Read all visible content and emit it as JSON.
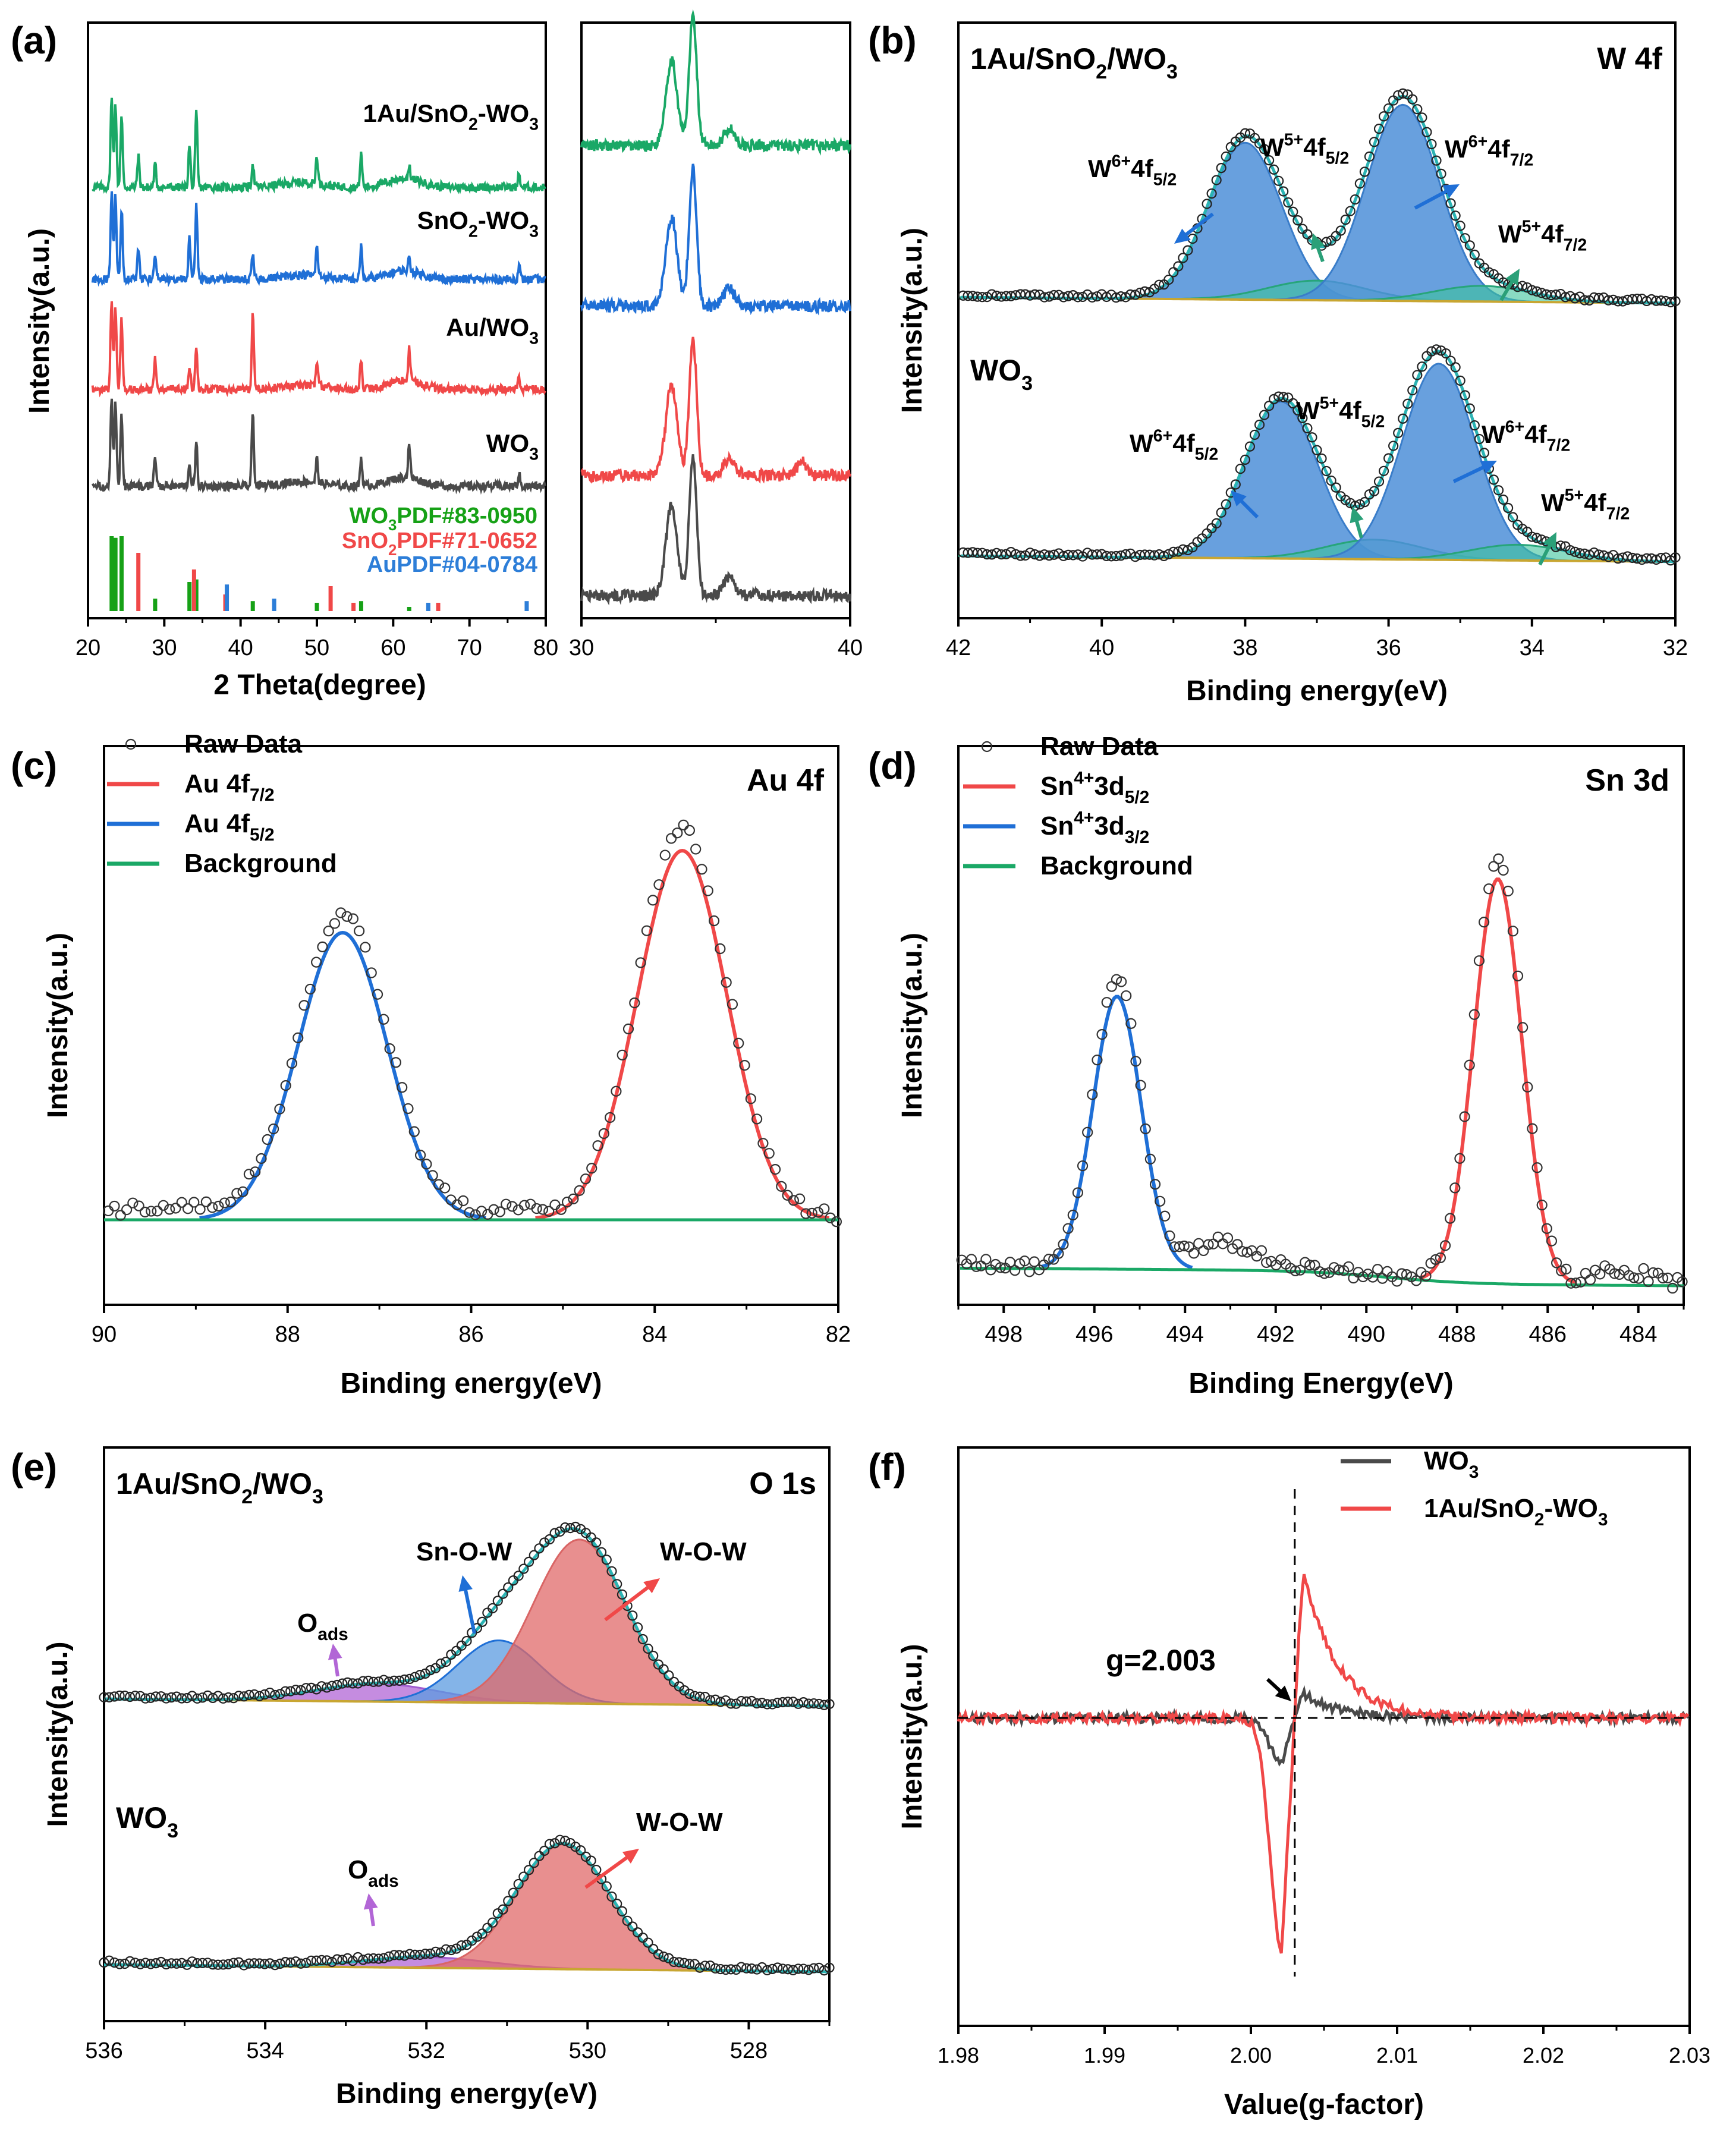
{
  "figure": {
    "panel_a": {
      "letter": "(a)",
      "xlabel": "2 Theta(degree)",
      "ylabel": "Intensity(a.u.)",
      "xticks": [
        "20",
        "30",
        "40",
        "50",
        "60",
        "70",
        "80"
      ],
      "zoom_xticks": [
        "30",
        "40"
      ],
      "series_labels": [
        {
          "base": "1Au/SnO",
          "sub": "2",
          "rest": "-WO",
          "sub2": "3"
        },
        {
          "base": "SnO",
          "sub": "2",
          "rest": "-WO",
          "sub2": "3"
        },
        {
          "base": "Au/WO",
          "sub": "3",
          "rest": "",
          "sub2": ""
        },
        {
          "base": "WO",
          "sub": "3",
          "rest": "",
          "sub2": ""
        }
      ],
      "pdf_labels": [
        {
          "base": "WO",
          "sub": "3",
          "rest": "PDF#83-0950"
        },
        {
          "base": "SnO",
          "sub": "2",
          "rest": "PDF#71-0652"
        },
        {
          "base": "Au",
          "sub": "",
          "rest": "PDF#04-0784"
        }
      ]
    },
    "panel_b": {
      "letter": "(b)",
      "title": "W 4f",
      "sample_top": {
        "base": "1Au/SnO",
        "sub": "2",
        "rest": "/WO",
        "sub2": "3"
      },
      "sample_bottom": {
        "base": "WO",
        "sub": "3"
      },
      "xlabel": "Binding energy(eV)",
      "ylabel": "Intensity(a.u.)",
      "xticks": [
        "42",
        "40",
        "38",
        "36",
        "34",
        "32"
      ],
      "peaks": [
        {
          "base": "W",
          "sup": "6+",
          "mid": "4f",
          "sub": "5/2"
        },
        {
          "base": "W",
          "sup": "5+",
          "mid": "4f",
          "sub": "5/2"
        },
        {
          "base": "W",
          "sup": "6+",
          "mid": "4f",
          "sub": "7/2"
        },
        {
          "base": "W",
          "sup": "5+",
          "mid": "4f",
          "sub": "7/2"
        }
      ]
    },
    "panel_c": {
      "letter": "(c)",
      "title": "Au 4f",
      "xlabel": "Binding energy(eV)",
      "ylabel": "Intensity(a.u.)",
      "xticks": [
        "90",
        "88",
        "86",
        "84",
        "82"
      ],
      "legend": [
        {
          "base": "Raw Data",
          "sub": ""
        },
        {
          "base": "Au 4f",
          "sub": "7/2"
        },
        {
          "base": "Au 4f",
          "sub": "5/2"
        },
        {
          "base": "Background",
          "sub": ""
        }
      ]
    },
    "panel_d": {
      "letter": "(d)",
      "title": "Sn 3d",
      "xlabel": "Binding Energy(eV)",
      "ylabel": "Intensity(a.u.)",
      "xticks": [
        "498",
        "496",
        "494",
        "492",
        "490",
        "488",
        "486",
        "484"
      ],
      "legend": [
        {
          "base": "Raw Data",
          "sup": "",
          "mid": "",
          "sub": ""
        },
        {
          "base": "Sn",
          "sup": "4+",
          "mid": "3d",
          "sub": "5/2"
        },
        {
          "base": "Sn",
          "sup": "4+",
          "mid": "3d",
          "sub": "3/2"
        },
        {
          "base": "Background",
          "sup": "",
          "mid": "",
          "sub": ""
        }
      ]
    },
    "panel_e": {
      "letter": "(e)",
      "title": "O 1s",
      "sample_top": {
        "base": "1Au/SnO",
        "sub": "2",
        "rest": "/WO",
        "sub2": "3"
      },
      "sample_bottom": {
        "base": "WO",
        "sub": "3"
      },
      "xlabel": "Binding energy(eV)",
      "ylabel": "Intensity(a.u.)",
      "xticks": [
        "536",
        "534",
        "532",
        "530",
        "528"
      ],
      "labels": {
        "snow": "Sn-O-W",
        "wow": "W-O-W",
        "oads_base": "O",
        "oads_sub": "ads"
      }
    },
    "panel_f": {
      "letter": "(f)",
      "xlabel": "Value(g-factor)",
      "ylabel": "Intensity(a.u.)",
      "xticks": [
        "1.98",
        "1.99",
        "2.00",
        "2.01",
        "2.02",
        "2.03"
      ],
      "annotation": "g=2.003",
      "legend": [
        {
          "base": "WO",
          "sub": "3",
          "rest": "",
          "sub2": ""
        },
        {
          "base": "1Au/SnO",
          "sub": "2",
          "rest": "-WO",
          "sub2": "3"
        }
      ]
    },
    "colors": {
      "green": "#1aa866",
      "blue": "#1f6fd6",
      "red": "#f04848",
      "dark": "#4a4a4a",
      "xps_fill": "#4e8fd8",
      "o_fill": "#e06a6a",
      "env": "#2bb3b3",
      "bg_line": "#c8a632",
      "purple": "#b266d6",
      "pdf_green": "#16a116",
      "pdf_red": "#f04848",
      "pdf_blue": "#2d7ed8"
    }
  },
  "chart_data": [
    {
      "id": "a",
      "type": "line",
      "title": "",
      "xlabel": "2 Theta(degree)",
      "ylabel": "Intensity(a.u.)",
      "xlim": [
        20,
        80
      ],
      "series": [
        {
          "name": "1Au/SnO2-WO3",
          "peaks_2theta": [
            23.1,
            23.6,
            24.4,
            26.6,
            28.8,
            33.3,
            34.2,
            41.6,
            50.0,
            55.8,
            62.1,
            76.5
          ]
        },
        {
          "name": "SnO2-WO3",
          "peaks_2theta": [
            23.1,
            23.6,
            24.4,
            26.6,
            28.8,
            33.3,
            34.2,
            41.6,
            50.0,
            55.8,
            62.1,
            76.5
          ]
        },
        {
          "name": "Au/WO3",
          "peaks_2theta": [
            23.1,
            23.6,
            24.4,
            28.8,
            33.3,
            34.2,
            41.6,
            50.0,
            55.8,
            62.1,
            76.5
          ]
        },
        {
          "name": "WO3",
          "peaks_2theta": [
            23.1,
            23.6,
            24.4,
            28.8,
            33.3,
            34.2,
            41.6,
            50.0,
            55.8,
            62.1,
            76.5
          ]
        }
      ],
      "reference_patterns": [
        {
          "name": "WO3 PDF#83-0950",
          "lines": [
            [
              23.1,
              0.9
            ],
            [
              23.6,
              0.88
            ],
            [
              24.4,
              0.9
            ],
            [
              28.8,
              0.15
            ],
            [
              33.3,
              0.35
            ],
            [
              34.2,
              0.38
            ],
            [
              41.6,
              0.12
            ],
            [
              50.0,
              0.1
            ],
            [
              55.8,
              0.12
            ],
            [
              62.1,
              0.05
            ]
          ]
        },
        {
          "name": "SnO2 PDF#71-0652",
          "lines": [
            [
              26.6,
              0.7
            ],
            [
              33.9,
              0.5
            ],
            [
              38.0,
              0.2
            ],
            [
              51.8,
              0.3
            ],
            [
              54.8,
              0.1
            ],
            [
              65.9,
              0.1
            ]
          ]
        },
        {
          "name": "Au PDF#04-0784",
          "lines": [
            [
              38.2,
              0.32
            ],
            [
              44.4,
              0.15
            ],
            [
              64.6,
              0.1
            ],
            [
              77.5,
              0.12
            ]
          ]
        }
      ],
      "zoom_window": {
        "xlim": [
          30,
          40
        ],
        "note": "inset of the same four patterns"
      }
    },
    {
      "id": "b",
      "type": "line",
      "title": "W 4f",
      "xlabel": "Binding energy(eV)",
      "ylabel": "Intensity(a.u.)",
      "xlim": [
        42,
        32
      ],
      "series": [
        {
          "name": "1Au/SnO2/WO3",
          "components": [
            {
              "name": "W6+ 4f5/2",
              "center": 38.0,
              "fwhm": 1.2,
              "height": 0.8
            },
            {
              "name": "W5+ 4f5/2",
              "center": 37.0,
              "fwhm": 1.6,
              "height": 0.1
            },
            {
              "name": "W6+ 4f7/2",
              "center": 35.8,
              "fwhm": 1.2,
              "height": 1.0
            },
            {
              "name": "W5+ 4f7/2",
              "center": 34.7,
              "fwhm": 1.6,
              "height": 0.08
            }
          ]
        },
        {
          "name": "WO3",
          "components": [
            {
              "name": "W6+ 4f5/2",
              "center": 37.5,
              "fwhm": 1.2,
              "height": 0.8
            },
            {
              "name": "W5+ 4f5/2",
              "center": 36.2,
              "fwhm": 1.6,
              "height": 0.1
            },
            {
              "name": "W6+ 4f7/2",
              "center": 35.3,
              "fwhm": 1.2,
              "height": 1.0
            },
            {
              "name": "W5+ 4f7/2",
              "center": 34.2,
              "fwhm": 1.6,
              "height": 0.08
            }
          ]
        }
      ]
    },
    {
      "id": "c",
      "type": "line",
      "title": "Au 4f",
      "xlabel": "Binding energy(eV)",
      "ylabel": "Intensity(a.u.)",
      "xlim": [
        90,
        82
      ],
      "series": [
        {
          "name": "Au 4f7/2",
          "center": 83.7,
          "fwhm": 1.15,
          "height": 0.9
        },
        {
          "name": "Au 4f5/2",
          "center": 87.4,
          "fwhm": 1.15,
          "height": 0.7
        },
        {
          "name": "Background",
          "level": 0.0
        }
      ]
    },
    {
      "id": "d",
      "type": "line",
      "title": "Sn 3d",
      "xlabel": "Binding Energy(eV)",
      "ylabel": "Intensity(a.u.)",
      "xlim": [
        499,
        483
      ],
      "series": [
        {
          "name": "Sn4+ 3d5/2",
          "center": 487.1,
          "fwhm": 1.25,
          "height": 0.92
        },
        {
          "name": "Sn4+ 3d3/2",
          "center": 495.5,
          "fwhm": 1.25,
          "height": 0.62
        },
        {
          "name": "Background",
          "start": 0.03,
          "end": 0.0
        }
      ]
    },
    {
      "id": "e",
      "type": "line",
      "title": "O 1s",
      "xlabel": "Binding energy(eV)",
      "ylabel": "Intensity(a.u.)",
      "xlim": [
        536,
        527
      ],
      "series": [
        {
          "name": "1Au/SnO2/WO3",
          "components": [
            {
              "name": "O ads",
              "center": 532.6,
              "fwhm": 1.8,
              "height": 0.1
            },
            {
              "name": "Sn-O-W",
              "center": 531.1,
              "fwhm": 1.2,
              "height": 0.35
            },
            {
              "name": "W-O-W",
              "center": 530.1,
              "fwhm": 1.35,
              "height": 0.92
            }
          ]
        },
        {
          "name": "WO3",
          "components": [
            {
              "name": "O ads",
              "center": 532.0,
              "fwhm": 1.8,
              "height": 0.06
            },
            {
              "name": "W-O-W",
              "center": 530.3,
              "fwhm": 1.35,
              "height": 0.7
            }
          ]
        }
      ]
    },
    {
      "id": "f",
      "type": "line",
      "title": "",
      "xlabel": "Value(g-factor)",
      "ylabel": "Intensity(a.u.)",
      "xlim": [
        1.98,
        2.03
      ],
      "annotation": {
        "text": "g=2.003",
        "g": 2.003
      },
      "series": [
        {
          "name": "WO3",
          "g0": 2.003,
          "min": -0.15,
          "max": 0.1
        },
        {
          "name": "1Au/SnO2-WO3",
          "g0": 2.003,
          "min": -0.75,
          "max": 0.62
        }
      ]
    }
  ]
}
